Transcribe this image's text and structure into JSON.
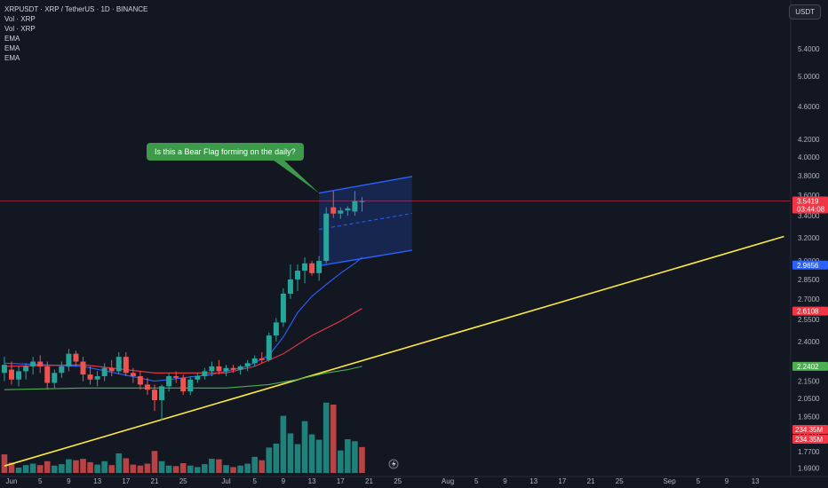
{
  "header": {
    "symbol_line": "XRPUSDT · XRP / TetherUS · 1D · BINANCE",
    "indicators": [
      "Vol · XRP",
      "Vol · XRP",
      "EMA",
      "EMA",
      "EMA"
    ],
    "currency": "USDT"
  },
  "annotation": {
    "text": "Is this a Bear Flag forming on the daily?"
  },
  "colors": {
    "up": "#26a69a",
    "down": "#ef5350",
    "ema_fast": "#2962ff",
    "ema_mid": "#f23645",
    "ema_slow": "#4caf50",
    "trendline": "#ffeb3b",
    "flag": "#2962ff",
    "callout": "#3d9a4a"
  },
  "chart_data": {
    "type": "candlestick",
    "price_axis": {
      "scale": "log",
      "ylim": [
        1.68,
        6.0
      ],
      "ticks": [
        "1.6900",
        "1.7700",
        "1.8500",
        "1.9500",
        "2.0500",
        "2.1500",
        "2.2500",
        "2.4000",
        "2.5500",
        "2.7000",
        "2.8500",
        "3.0000",
        "3.2000",
        "3.4000",
        "3.6000",
        "3.8000",
        "4.0000",
        "4.2000",
        "4.6000",
        "5.0000",
        "5.4000"
      ]
    },
    "time_axis": {
      "ticks": [
        {
          "label": "Jun",
          "day": 0
        },
        {
          "label": "5",
          "day": 4
        },
        {
          "label": "9",
          "day": 8
        },
        {
          "label": "13",
          "day": 12
        },
        {
          "label": "17",
          "day": 16
        },
        {
          "label": "21",
          "day": 20
        },
        {
          "label": "25",
          "day": 24
        },
        {
          "label": "Jul",
          "day": 30
        },
        {
          "label": "5",
          "day": 34
        },
        {
          "label": "9",
          "day": 38
        },
        {
          "label": "13",
          "day": 42
        },
        {
          "label": "17",
          "day": 46
        },
        {
          "label": "21",
          "day": 50
        },
        {
          "label": "25",
          "day": 54
        },
        {
          "label": "Aug",
          "day": 61
        },
        {
          "label": "5",
          "day": 65
        },
        {
          "label": "9",
          "day": 69
        },
        {
          "label": "13",
          "day": 73
        },
        {
          "label": "17",
          "day": 77
        },
        {
          "label": "21",
          "day": 81
        },
        {
          "label": "25",
          "day": 85
        },
        {
          "label": "Sep",
          "day": 92
        },
        {
          "label": "5",
          "day": 96
        },
        {
          "label": "9",
          "day": 100
        },
        {
          "label": "13",
          "day": 104
        }
      ]
    },
    "candles": [
      {
        "day": -1,
        "o": 2.2,
        "h": 2.3,
        "l": 2.15,
        "c": 2.25
      },
      {
        "day": 0,
        "o": 2.22,
        "h": 2.27,
        "l": 2.13,
        "c": 2.16
      },
      {
        "day": 1,
        "o": 2.16,
        "h": 2.24,
        "l": 2.12,
        "c": 2.21
      },
      {
        "day": 2,
        "o": 2.21,
        "h": 2.26,
        "l": 2.16,
        "c": 2.24
      },
      {
        "day": 3,
        "o": 2.24,
        "h": 2.3,
        "l": 2.19,
        "c": 2.27
      },
      {
        "day": 4,
        "o": 2.27,
        "h": 2.31,
        "l": 2.2,
        "c": 2.24
      },
      {
        "day": 5,
        "o": 2.24,
        "h": 2.27,
        "l": 2.1,
        "c": 2.14
      },
      {
        "day": 6,
        "o": 2.14,
        "h": 2.22,
        "l": 2.11,
        "c": 2.2
      },
      {
        "day": 7,
        "o": 2.2,
        "h": 2.27,
        "l": 2.17,
        "c": 2.24
      },
      {
        "day": 8,
        "o": 2.24,
        "h": 2.35,
        "l": 2.21,
        "c": 2.32
      },
      {
        "day": 9,
        "o": 2.32,
        "h": 2.34,
        "l": 2.24,
        "c": 2.27
      },
      {
        "day": 10,
        "o": 2.27,
        "h": 2.3,
        "l": 2.15,
        "c": 2.19
      },
      {
        "day": 11,
        "o": 2.19,
        "h": 2.24,
        "l": 2.13,
        "c": 2.16
      },
      {
        "day": 12,
        "o": 2.16,
        "h": 2.21,
        "l": 2.12,
        "c": 2.18
      },
      {
        "day": 13,
        "o": 2.18,
        "h": 2.26,
        "l": 2.15,
        "c": 2.23
      },
      {
        "day": 14,
        "o": 2.23,
        "h": 2.28,
        "l": 2.18,
        "c": 2.21
      },
      {
        "day": 15,
        "o": 2.21,
        "h": 2.33,
        "l": 2.19,
        "c": 2.3
      },
      {
        "day": 16,
        "o": 2.3,
        "h": 2.33,
        "l": 2.18,
        "c": 2.2
      },
      {
        "day": 17,
        "o": 2.2,
        "h": 2.23,
        "l": 2.14,
        "c": 2.18
      },
      {
        "day": 18,
        "o": 2.18,
        "h": 2.21,
        "l": 2.1,
        "c": 2.13
      },
      {
        "day": 19,
        "o": 2.13,
        "h": 2.17,
        "l": 2.07,
        "c": 2.1
      },
      {
        "day": 20,
        "o": 2.1,
        "h": 2.13,
        "l": 1.98,
        "c": 2.04
      },
      {
        "day": 21,
        "o": 2.04,
        "h": 2.13,
        "l": 1.93,
        "c": 2.12
      },
      {
        "day": 22,
        "o": 2.12,
        "h": 2.2,
        "l": 2.09,
        "c": 2.18
      },
      {
        "day": 23,
        "o": 2.18,
        "h": 2.21,
        "l": 2.14,
        "c": 2.17
      },
      {
        "day": 24,
        "o": 2.17,
        "h": 2.19,
        "l": 2.07,
        "c": 2.09
      },
      {
        "day": 25,
        "o": 2.09,
        "h": 2.18,
        "l": 2.07,
        "c": 2.16
      },
      {
        "day": 26,
        "o": 2.16,
        "h": 2.2,
        "l": 2.14,
        "c": 2.18
      },
      {
        "day": 27,
        "o": 2.18,
        "h": 2.23,
        "l": 2.16,
        "c": 2.21
      },
      {
        "day": 28,
        "o": 2.21,
        "h": 2.27,
        "l": 2.18,
        "c": 2.24
      },
      {
        "day": 29,
        "o": 2.24,
        "h": 2.28,
        "l": 2.19,
        "c": 2.21
      },
      {
        "day": 30,
        "o": 2.21,
        "h": 2.25,
        "l": 2.18,
        "c": 2.23
      },
      {
        "day": 31,
        "o": 2.23,
        "h": 2.25,
        "l": 2.2,
        "c": 2.22
      },
      {
        "day": 32,
        "o": 2.22,
        "h": 2.25,
        "l": 2.19,
        "c": 2.24
      },
      {
        "day": 33,
        "o": 2.24,
        "h": 2.28,
        "l": 2.21,
        "c": 2.26
      },
      {
        "day": 34,
        "o": 2.26,
        "h": 2.31,
        "l": 2.24,
        "c": 2.29
      },
      {
        "day": 35,
        "o": 2.29,
        "h": 2.33,
        "l": 2.26,
        "c": 2.28
      },
      {
        "day": 36,
        "o": 2.28,
        "h": 2.46,
        "l": 2.27,
        "c": 2.44
      },
      {
        "day": 37,
        "o": 2.44,
        "h": 2.56,
        "l": 2.4,
        "c": 2.53
      },
      {
        "day": 38,
        "o": 2.53,
        "h": 2.78,
        "l": 2.5,
        "c": 2.74
      },
      {
        "day": 39,
        "o": 2.74,
        "h": 2.97,
        "l": 2.7,
        "c": 2.85
      },
      {
        "day": 40,
        "o": 2.85,
        "h": 2.97,
        "l": 2.76,
        "c": 2.92
      },
      {
        "day": 41,
        "o": 2.92,
        "h": 3.03,
        "l": 2.82,
        "c": 2.98
      },
      {
        "day": 42,
        "o": 2.98,
        "h": 3.0,
        "l": 2.88,
        "c": 2.9
      },
      {
        "day": 43,
        "o": 2.9,
        "h": 3.04,
        "l": 2.84,
        "c": 3.0
      },
      {
        "day": 44,
        "o": 3.0,
        "h": 3.48,
        "l": 2.98,
        "c": 3.42
      },
      {
        "day": 45,
        "o": 3.48,
        "h": 3.64,
        "l": 3.38,
        "c": 3.42
      },
      {
        "day": 46,
        "o": 3.42,
        "h": 3.48,
        "l": 3.37,
        "c": 3.45
      },
      {
        "day": 47,
        "o": 3.45,
        "h": 3.49,
        "l": 3.4,
        "c": 3.47
      },
      {
        "day": 48,
        "o": 3.44,
        "h": 3.64,
        "l": 3.4,
        "c": 3.54
      },
      {
        "day": 49,
        "o": 3.54,
        "h": 3.58,
        "l": 3.44,
        "c": 3.54
      }
    ],
    "volume": {
      "ylim": [
        0,
        1200
      ],
      "bars": [
        {
          "day": -1,
          "v": 190,
          "up": false
        },
        {
          "day": 0,
          "v": 105,
          "up": false
        },
        {
          "day": 1,
          "v": 55,
          "up": true
        },
        {
          "day": 2,
          "v": 80,
          "up": true
        },
        {
          "day": 3,
          "v": 95,
          "up": true
        },
        {
          "day": 4,
          "v": 80,
          "up": false
        },
        {
          "day": 5,
          "v": 120,
          "up": false
        },
        {
          "day": 6,
          "v": 75,
          "up": true
        },
        {
          "day": 7,
          "v": 90,
          "up": true
        },
        {
          "day": 8,
          "v": 140,
          "up": true
        },
        {
          "day": 9,
          "v": 130,
          "up": false
        },
        {
          "day": 10,
          "v": 145,
          "up": false
        },
        {
          "day": 11,
          "v": 110,
          "up": false
        },
        {
          "day": 12,
          "v": 85,
          "up": true
        },
        {
          "day": 13,
          "v": 120,
          "up": true
        },
        {
          "day": 14,
          "v": 80,
          "up": false
        },
        {
          "day": 15,
          "v": 200,
          "up": true
        },
        {
          "day": 16,
          "v": 150,
          "up": false
        },
        {
          "day": 17,
          "v": 85,
          "up": false
        },
        {
          "day": 18,
          "v": 75,
          "up": false
        },
        {
          "day": 19,
          "v": 95,
          "up": false
        },
        {
          "day": 20,
          "v": 225,
          "up": false
        },
        {
          "day": 21,
          "v": 120,
          "up": true
        },
        {
          "day": 22,
          "v": 75,
          "up": true
        },
        {
          "day": 23,
          "v": 70,
          "up": false
        },
        {
          "day": 24,
          "v": 100,
          "up": false
        },
        {
          "day": 25,
          "v": 75,
          "up": true
        },
        {
          "day": 26,
          "v": 60,
          "up": true
        },
        {
          "day": 27,
          "v": 90,
          "up": true
        },
        {
          "day": 28,
          "v": 145,
          "up": true
        },
        {
          "day": 29,
          "v": 140,
          "up": false
        },
        {
          "day": 30,
          "v": 80,
          "up": true
        },
        {
          "day": 31,
          "v": 60,
          "up": false
        },
        {
          "day": 32,
          "v": 75,
          "up": true
        },
        {
          "day": 33,
          "v": 95,
          "up": true
        },
        {
          "day": 34,
          "v": 165,
          "up": true
        },
        {
          "day": 35,
          "v": 130,
          "up": false
        },
        {
          "day": 36,
          "v": 260,
          "up": true
        },
        {
          "day": 37,
          "v": 300,
          "up": true
        },
        {
          "day": 38,
          "v": 585,
          "up": true
        },
        {
          "day": 39,
          "v": 405,
          "up": true
        },
        {
          "day": 40,
          "v": 295,
          "up": true
        },
        {
          "day": 41,
          "v": 530,
          "up": true
        },
        {
          "day": 42,
          "v": 395,
          "up": true
        },
        {
          "day": 43,
          "v": 340,
          "up": true
        },
        {
          "day": 44,
          "v": 720,
          "up": true
        },
        {
          "day": 45,
          "v": 700,
          "up": false
        },
        {
          "day": 46,
          "v": 230,
          "up": true
        },
        {
          "day": 47,
          "v": 345,
          "up": true
        },
        {
          "day": 48,
          "v": 325,
          "up": true
        },
        {
          "day": 49,
          "v": 265,
          "up": false
        }
      ]
    },
    "ema_lines": [
      {
        "color": "#2962ff",
        "points": [
          {
            "day": -1,
            "v": 2.26
          },
          {
            "day": 10,
            "v": 2.24
          },
          {
            "day": 20,
            "v": 2.15
          },
          {
            "day": 28,
            "v": 2.19
          },
          {
            "day": 33,
            "v": 2.24
          },
          {
            "day": 36,
            "v": 2.31
          },
          {
            "day": 38,
            "v": 2.43
          },
          {
            "day": 40,
            "v": 2.6
          },
          {
            "day": 42,
            "v": 2.72
          },
          {
            "day": 44,
            "v": 2.81
          },
          {
            "day": 46,
            "v": 2.9
          },
          {
            "day": 48,
            "v": 2.98
          },
          {
            "day": 49,
            "v": 3.03
          }
        ]
      },
      {
        "color": "#f23645",
        "points": [
          {
            "day": -1,
            "v": 2.24
          },
          {
            "day": 10,
            "v": 2.25
          },
          {
            "day": 20,
            "v": 2.2
          },
          {
            "day": 30,
            "v": 2.2
          },
          {
            "day": 34,
            "v": 2.24
          },
          {
            "day": 38,
            "v": 2.32
          },
          {
            "day": 42,
            "v": 2.44
          },
          {
            "day": 46,
            "v": 2.54
          },
          {
            "day": 49,
            "v": 2.63
          }
        ]
      },
      {
        "color": "#4caf50",
        "points": [
          {
            "day": -1,
            "v": 2.1
          },
          {
            "day": 10,
            "v": 2.11
          },
          {
            "day": 20,
            "v": 2.11
          },
          {
            "day": 30,
            "v": 2.11
          },
          {
            "day": 36,
            "v": 2.13
          },
          {
            "day": 40,
            "v": 2.16
          },
          {
            "day": 44,
            "v": 2.2
          },
          {
            "day": 47,
            "v": 2.22
          },
          {
            "day": 49,
            "v": 2.24
          }
        ]
      }
    ],
    "trendline": {
      "color": "#ffeb3b",
      "from": {
        "day": -1,
        "v": 1.7
      },
      "to": {
        "day": 108,
        "v": 3.21
      }
    },
    "flag": {
      "color": "#2962ff",
      "top_left": {
        "day": 43,
        "v": 3.62
      },
      "top_right": {
        "day": 56,
        "v": 3.79
      },
      "bottom_left": {
        "day": 43,
        "v": 2.96
      },
      "bottom_right": {
        "day": 56,
        "v": 3.09
      }
    },
    "current_price_line": {
      "v": 3.5419
    },
    "price_badges": [
      {
        "label": "3.5419",
        "sub": "03:44:08",
        "v": 3.5419,
        "color": "#f23645"
      },
      {
        "label": "2.9656",
        "v": 2.9656,
        "color": "#2962ff"
      },
      {
        "label": "2.6108",
        "v": 2.6108,
        "color": "#f23645"
      },
      {
        "label": "2.2402",
        "v": 2.2402,
        "color": "#4caf50"
      }
    ],
    "volume_badges": [
      {
        "label": "234.35M",
        "color": "#f23645"
      },
      {
        "label": "234.35M",
        "color": "#f23645"
      }
    ]
  }
}
